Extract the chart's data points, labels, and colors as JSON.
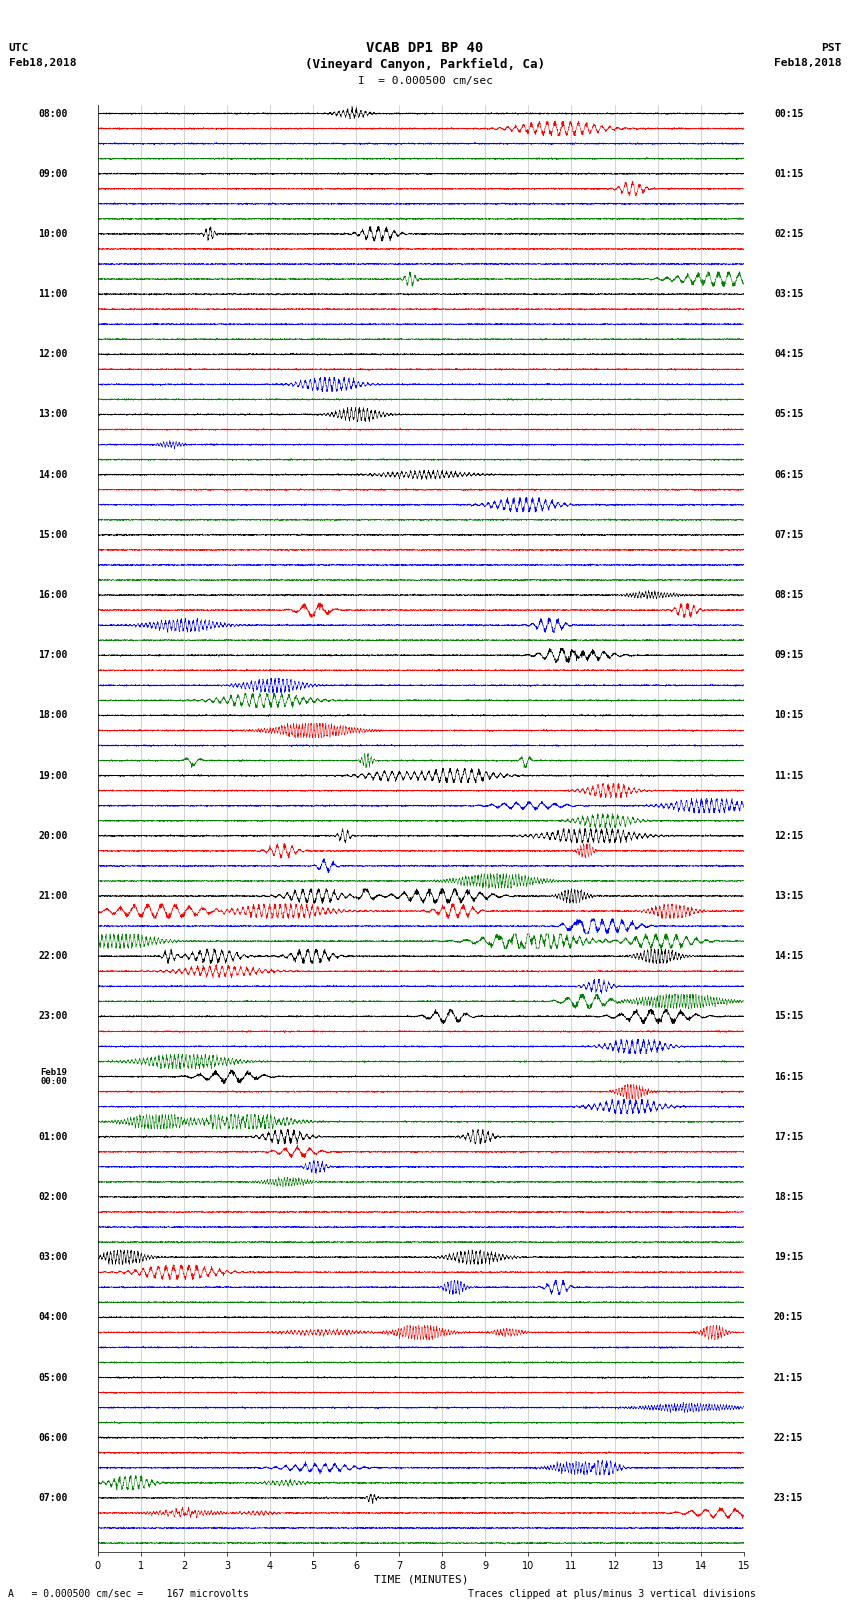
{
  "title_line1": "VCAB DP1 BP 40",
  "title_line2": "(Vineyard Canyon, Parkfield, Ca)",
  "scale_text": "I  = 0.000500 cm/sec",
  "left_header_line1": "UTC",
  "left_header_line2": "Feb18,2018",
  "right_header_line1": "PST",
  "right_header_line2": "Feb18,2018",
  "xlabel": "TIME (MINUTES)",
  "footer_left": "A   = 0.000500 cm/sec =    167 microvolts",
  "footer_right": "Traces clipped at plus/minus 3 vertical divisions",
  "xlim": [
    0,
    15
  ],
  "xticks": [
    0,
    1,
    2,
    3,
    4,
    5,
    6,
    7,
    8,
    9,
    10,
    11,
    12,
    13,
    14,
    15
  ],
  "colors": [
    "black",
    "red",
    "blue",
    "green"
  ],
  "background": "white",
  "utc_labels": [
    "08:00",
    "09:00",
    "10:00",
    "11:00",
    "12:00",
    "13:00",
    "14:00",
    "15:00",
    "16:00",
    "17:00",
    "18:00",
    "19:00",
    "20:00",
    "21:00",
    "22:00",
    "23:00",
    "Feb19\n00:00",
    "01:00",
    "02:00",
    "03:00",
    "04:00",
    "05:00",
    "06:00",
    "07:00"
  ],
  "pst_labels": [
    "00:15",
    "01:15",
    "02:15",
    "03:15",
    "04:15",
    "05:15",
    "06:15",
    "07:15",
    "08:15",
    "09:15",
    "10:15",
    "11:15",
    "12:15",
    "13:15",
    "14:15",
    "15:15",
    "16:15",
    "17:15",
    "18:15",
    "19:15",
    "20:15",
    "21:15",
    "22:15",
    "23:15"
  ],
  "n_hours": 24,
  "channels_per_hour": 4,
  "n_samples": 4500,
  "noise_std": 0.03,
  "event_clip": 0.45,
  "fig_width": 8.5,
  "fig_height": 16.13,
  "dpi": 100
}
